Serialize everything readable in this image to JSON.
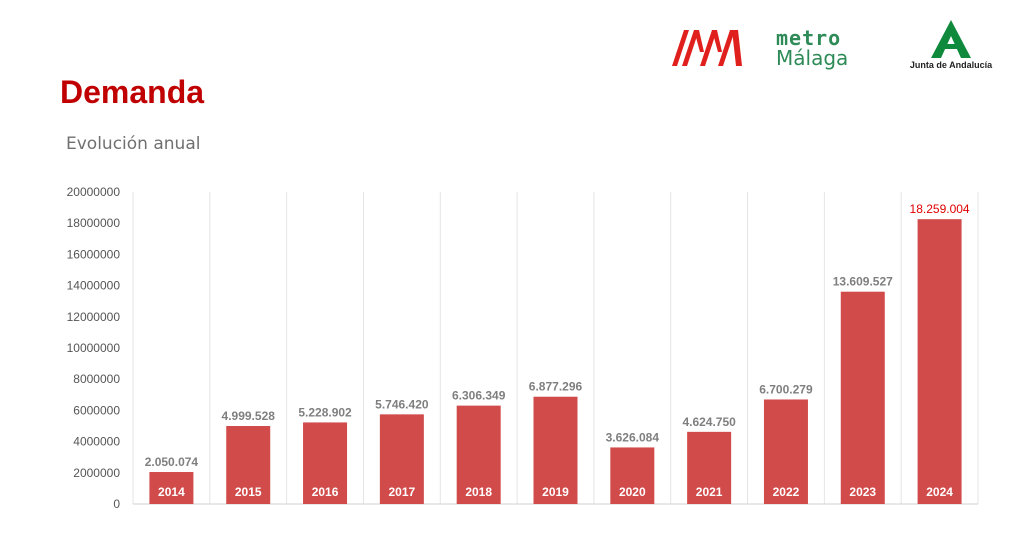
{
  "header": {
    "title": "Demanda",
    "subtitle": "Evolución anual"
  },
  "logos": {
    "metro_line1": "metro",
    "metro_line2": "Málaga",
    "junta": "Junta de Andalucía",
    "metro_icon": "metro-malaga-logo-icon",
    "junta_icon": "junta-andalucia-logo-icon"
  },
  "colors": {
    "title": "#c00000",
    "bar": "#d24b4b",
    "highlight_label": "#e00000",
    "metro_red": "#e0201c",
    "metro_green": "#2e8b57",
    "junta_green": "#0f8a3c"
  },
  "chart_data": {
    "type": "bar",
    "categories": [
      "2014",
      "2015",
      "2016",
      "2017",
      "2018",
      "2019",
      "2020",
      "2021",
      "2022",
      "2023",
      "2024"
    ],
    "values": [
      2050074,
      4999528,
      5228902,
      5746420,
      6306349,
      6877296,
      3626084,
      4624750,
      6700279,
      13609527,
      18259004
    ],
    "value_labels": [
      "2.050.074",
      "4.999.528",
      "5.228.902",
      "5.746.420",
      "6.306.349",
      "6.877.296",
      "3.626.084",
      "4.624.750",
      "6.700.279",
      "13.609.527",
      "18.259.004"
    ],
    "y_ticks": [
      "0",
      "2000000",
      "4000000",
      "6000000",
      "8000000",
      "10000000",
      "12000000",
      "14000000",
      "16000000",
      "18000000",
      "20000000"
    ],
    "ylim": [
      0,
      20000000
    ],
    "highlight_index": 10,
    "grid": "vertical",
    "legend": "none"
  }
}
